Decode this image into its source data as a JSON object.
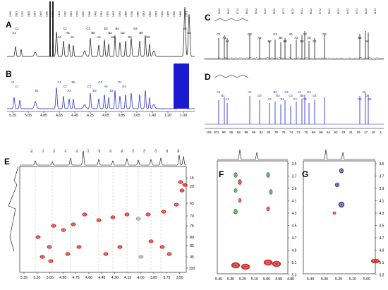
{
  "panels": {
    "A": {
      "label": "A",
      "peak_labels": [
        "C1",
        "A1",
        "A4",
        "C2",
        "A5",
        "A2",
        "C3",
        "B5",
        "A3",
        "E3",
        "B2",
        "C5",
        "B4",
        "D2",
        "D3",
        "D4",
        "B6",
        "D6",
        "A6",
        "C6"
      ]
    },
    "B": {
      "label": "B",
      "peak_labels": [
        "A1",
        "C1",
        "B1",
        "A4",
        "C2",
        "A3",
        "B5",
        "C3",
        "B3",
        "C4",
        "A5",
        "B2",
        "D1",
        "D2",
        "A6",
        "B6",
        "D6"
      ],
      "xticks": [
        "5.25",
        "5.05",
        "4.85",
        "4.65",
        "4.45",
        "4.25",
        "4.05",
        "3.85",
        "3.65",
        "1.40",
        "1.20",
        "1.00"
      ]
    },
    "C": {
      "label": "C",
      "peak_labels": [
        "C1",
        "A1",
        "A4",
        "D3",
        "A2",
        "B2",
        "C2",
        "B4",
        "B5",
        "A6",
        "A3",
        "B3",
        "C3",
        "A5",
        "D1",
        "D6",
        "B6",
        "A6"
      ]
    },
    "D": {
      "label": "D",
      "peak_labels": [
        "C1",
        "B1",
        "A1",
        "A4",
        "D3",
        "A2",
        "B2",
        "B3",
        "B4",
        "C2",
        "C4",
        "C3",
        "A3",
        "B5",
        "C5",
        "D4",
        "D1",
        "D6",
        "A6",
        "C6",
        "B6"
      ],
      "xticks": [
        "104",
        "101",
        "98",
        "95",
        "92",
        "88",
        "86",
        "82",
        "80",
        "78",
        "76",
        "74",
        "72",
        "70",
        "68",
        "66",
        "64",
        "62",
        "23",
        "21",
        "19",
        "17",
        "15",
        "1"
      ]
    },
    "E": {
      "label": "E",
      "top_labels": [
        "B1",
        "C1",
        "D1",
        "A1",
        "A4",
        "C2",
        "A5",
        "A3",
        "B4",
        "C3",
        "D3",
        "D4",
        "A6",
        "B6"
      ],
      "xticks": [
        "5.35",
        "5.20",
        "5.05",
        "4.90",
        "4.75",
        "4.60",
        "4.45",
        "4.30",
        "4.15",
        "4.00",
        "3.85",
        "3.70",
        "3.55"
      ],
      "yticks": [
        "15",
        "20",
        "65",
        "70",
        "75",
        "80",
        "85",
        "95",
        "100"
      ]
    },
    "F": {
      "label": "F",
      "xticks": [
        "5.40",
        "5.30",
        "5.20",
        "5.10",
        "5.00",
        "4.90",
        "4.80"
      ],
      "yticks": [
        "3.5",
        "3.7",
        "3.9",
        "4.1",
        "4.3",
        "4.5",
        "4.7",
        "4.9",
        "5.1",
        "5.3"
      ]
    },
    "G": {
      "label": "G",
      "xticks": [
        "5.40",
        "5.30",
        "5.20",
        "5.10",
        "5.00"
      ],
      "yticks": [
        "3.5",
        "3.7",
        "3.9",
        "4.1",
        "4.3",
        "4.5",
        "4.7",
        "4.9",
        "5.1",
        "5.3"
      ]
    }
  },
  "colors": {
    "black_trace": "#111111",
    "blue_trace": "#1a1ad0",
    "blue_label": "#2323c8",
    "red_contour": "#c81414",
    "green_contour": "#2a8a2a",
    "purple_contour": "#4a2a8a",
    "grey_guide": "#9a9a9a"
  }
}
